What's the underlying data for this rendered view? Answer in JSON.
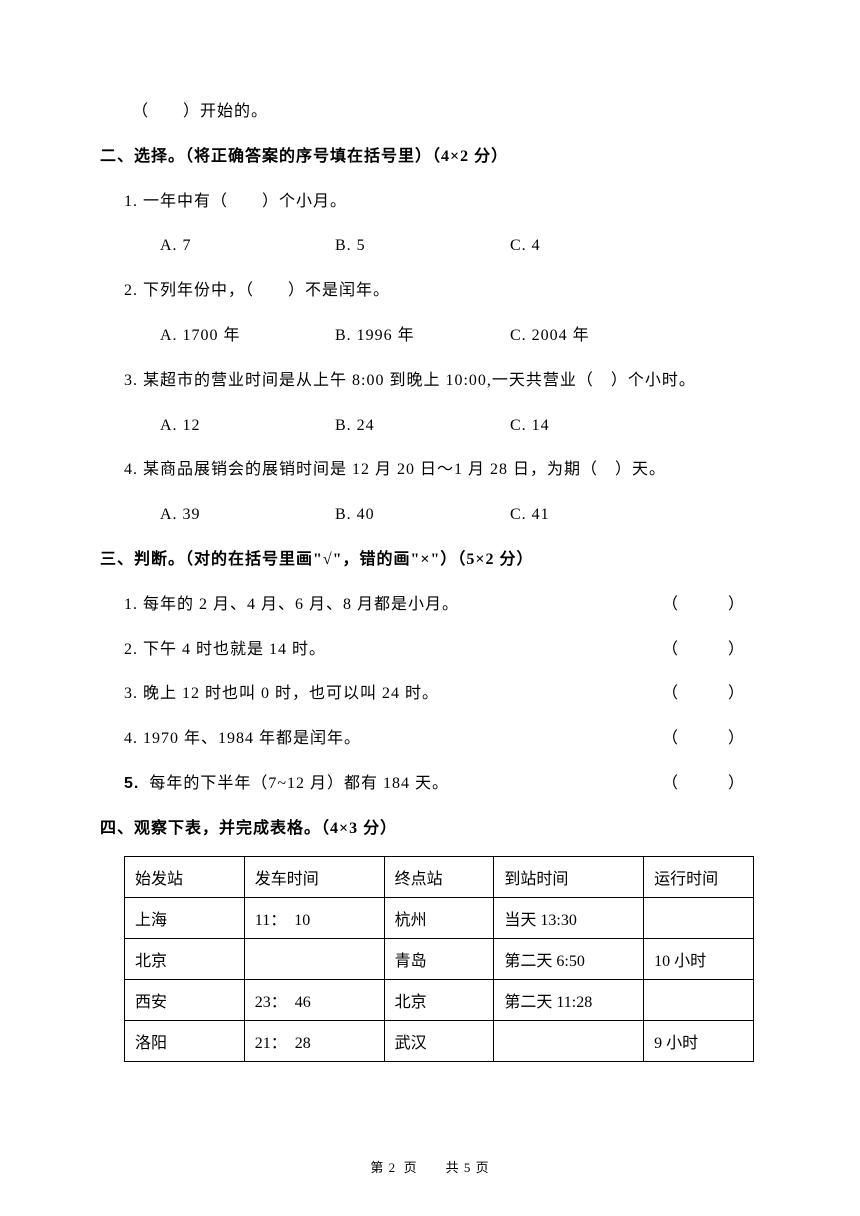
{
  "top_line": "（　　）开始的。",
  "section2": {
    "title": "二、选择。（将正确答案的序号填在括号里）（4×2 分）",
    "q1": {
      "stem": "1. 一年中有（　　）个小月。",
      "a": "A. 7",
      "b": "B. 5",
      "c": "C. 4"
    },
    "q2": {
      "stem": "2. 下列年份中，（　　）不是闰年。",
      "a": "A. 1700 年",
      "b": "B. 1996 年",
      "c": "C. 2004 年"
    },
    "q3": {
      "stem": "3. 某超市的营业时间是从上午 8:00 到晚上 10:00,一天共营业（　）个小时。",
      "a": "A. 12",
      "b": "B. 24",
      "c": "C. 14"
    },
    "q4": {
      "stem": "4. 某商品展销会的展销时间是 12 月 20 日～1 月 28 日，为期（　）天。",
      "a": "A. 39",
      "b": "B. 40",
      "c": "C. 41"
    }
  },
  "section3": {
    "title": "三、判断。（对的在括号里画\"√\"，错的画\"×\"）（5×2 分）",
    "q1": "1. 每年的 2 月、4 月、6 月、8 月都是小月。",
    "q2": "2. 下午 4 时也就是 14 时。",
    "q3": "3. 晚上 12 时也叫 0 时，也可以叫 24 时。",
    "q4": "4. 1970 年、1984 年都是闰年。",
    "q5_num": "5.",
    "q5": "每年的下半年（7~12 月）都有 184 天。",
    "paren": "（　　）"
  },
  "section4": {
    "title": "四、观察下表，并完成表格。（4×3 分）",
    "headers": [
      "始发站",
      "发车时间",
      "终点站",
      "到站时间",
      "运行时间"
    ],
    "rows": [
      [
        "上海",
        "11：　10",
        "杭州",
        "当天 13:30",
        ""
      ],
      [
        "北京",
        "",
        "青岛",
        "第二天 6:50",
        "10 小时"
      ],
      [
        "西安",
        "23：　46",
        "北京",
        "第二天 11:28",
        ""
      ],
      [
        "洛阳",
        "21：　28",
        "武汉",
        "",
        "9 小时"
      ]
    ]
  },
  "footer": "第 2 页　　共 5 页"
}
